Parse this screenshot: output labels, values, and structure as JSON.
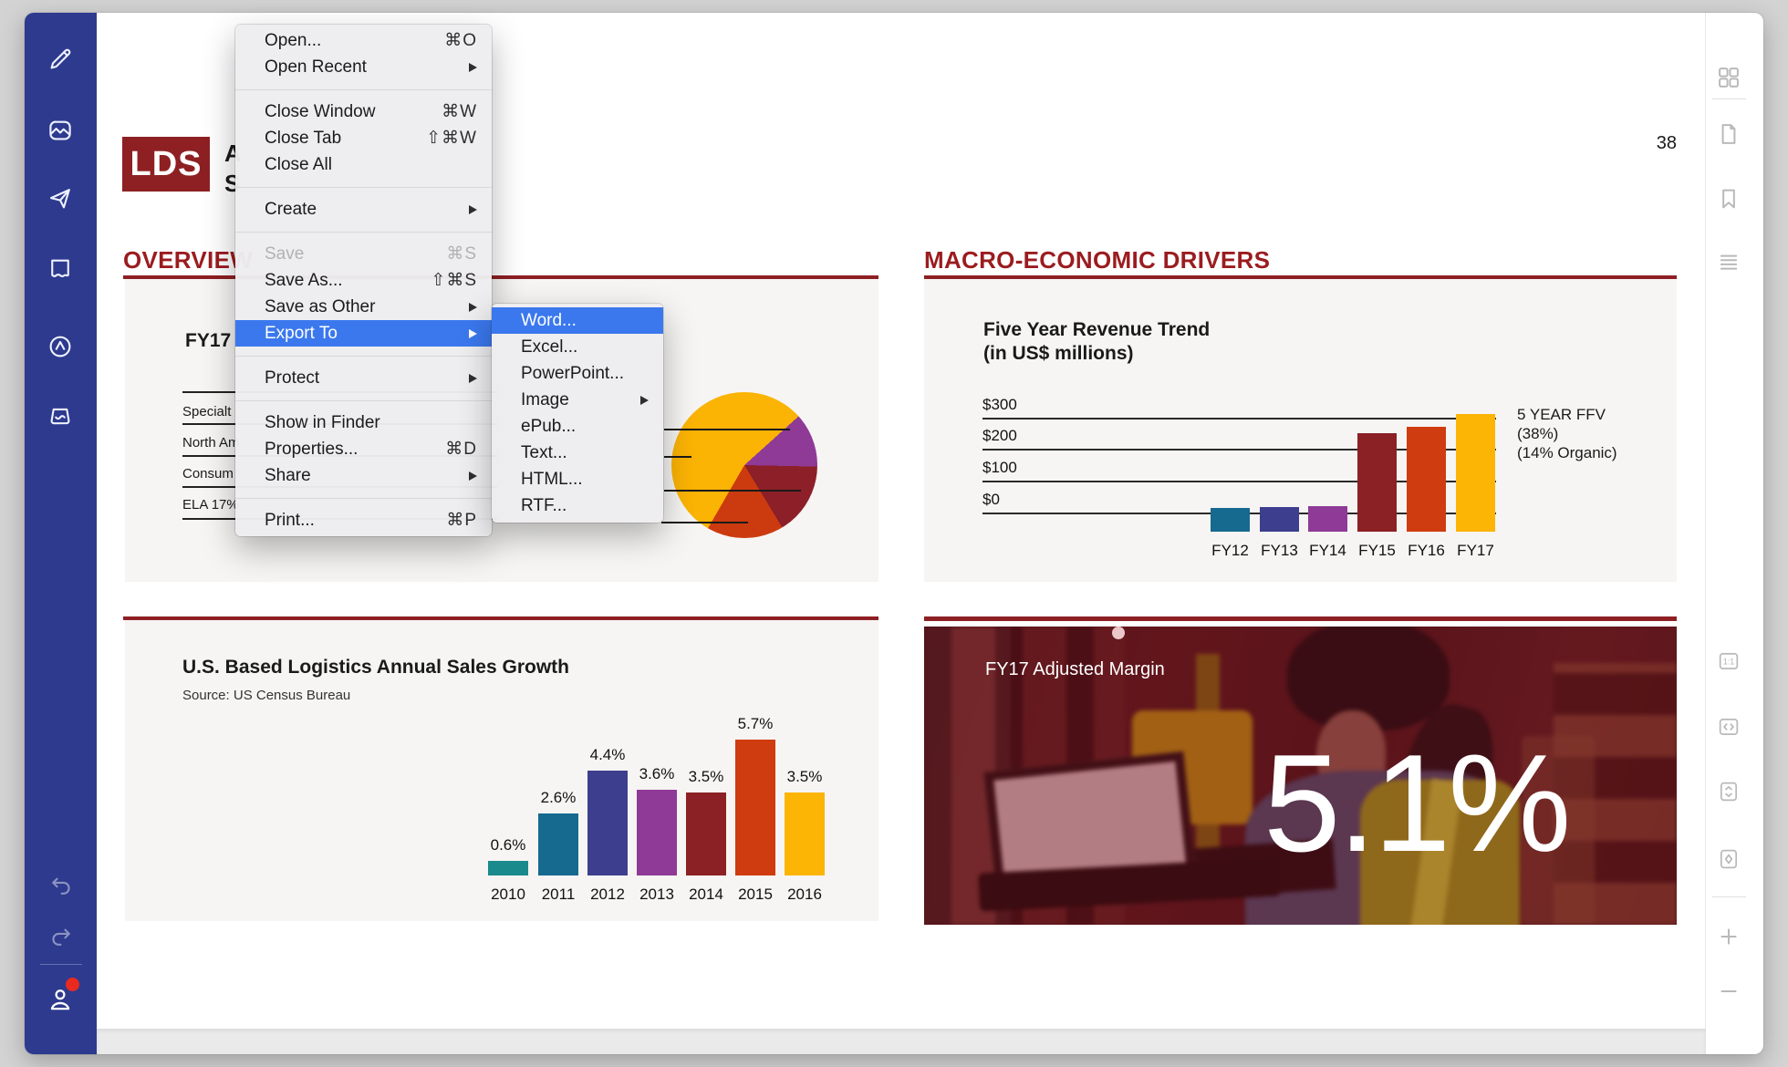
{
  "document": {
    "logo": "LDS",
    "page_number": "38",
    "masthead_fragments": [
      "A",
      "S"
    ],
    "overview": {
      "heading": "OVERVIEW",
      "fy17_label": "FY17",
      "row_fragments": [
        "Specialt",
        "North Am",
        "Consum",
        "ELA 17%"
      ]
    },
    "macro": {
      "heading": "MACRO-ECONOMIC DRIVERS"
    },
    "us_section": {
      "title": "U.S. Based Logistics Annual Sales Growth",
      "source": "Source: US Census Bureau"
    },
    "margin_panel": {
      "label": "FY17 Adjusted Margin",
      "value": "5.1%"
    }
  },
  "chart_data": [
    {
      "type": "bar",
      "title": "Five Year Revenue Trend",
      "subtitle": "(in US$ millions)",
      "categories": [
        "FY12",
        "FY13",
        "FY14",
        "FY15",
        "FY16",
        "FY17"
      ],
      "values": [
        18,
        20,
        23,
        255,
        275,
        315
      ],
      "ylabel": "US$ millions",
      "ylim": [
        0,
        300
      ],
      "ytick_labels": [
        "$300",
        "$200",
        "$100",
        "$0"
      ],
      "grid": "horizontal",
      "legend": "none",
      "annotation": [
        "5 YEAR FFV",
        "(38%)",
        "(14% Organic)"
      ],
      "colors": [
        "#16698f",
        "#3e3e8e",
        "#8f3a97",
        "#8b2125",
        "#cf3c0f",
        "#fcb405"
      ]
    },
    {
      "type": "bar",
      "title": "U.S. Based Logistics Annual Sales Growth",
      "source": "Source: US Census Bureau",
      "categories": [
        "2010",
        "2011",
        "2012",
        "2013",
        "2014",
        "2015",
        "2016"
      ],
      "values": [
        0.6,
        2.6,
        4.4,
        3.6,
        3.5,
        5.7,
        3.5
      ],
      "value_labels": [
        "0.6%",
        "2.6%",
        "4.4%",
        "3.6%",
        "3.5%",
        "5.7%",
        "3.5%"
      ],
      "grid": "off",
      "legend": "none",
      "colors": [
        "#1a8a8c",
        "#16698f",
        "#3e3e8e",
        "#8f3a97",
        "#8b2125",
        "#cf3c0f",
        "#fcb405"
      ]
    },
    {
      "type": "pie",
      "slices": [
        {
          "color": "#fbb304",
          "pct": 55
        },
        {
          "color": "#8f3a97",
          "pct": 12
        },
        {
          "color": "#8c1f28",
          "pct": 16
        },
        {
          "color": "#cc3b10",
          "pct": 17
        }
      ]
    }
  ],
  "menu": {
    "items": [
      {
        "label": "Open...",
        "shortcut": "⌘O"
      },
      {
        "label": "Open Recent"
      },
      {
        "label": "Close Window",
        "shortcut": "⌘W"
      },
      {
        "label": "Close Tab",
        "shortcut": "⇧⌘W"
      },
      {
        "label": "Close All"
      },
      {
        "label": "Create"
      },
      {
        "label": "Save",
        "shortcut": "⌘S",
        "disabled": true
      },
      {
        "label": "Save As...",
        "shortcut": "⇧⌘S"
      },
      {
        "label": "Save as Other"
      },
      {
        "label": "Export To",
        "highlighted": true
      },
      {
        "label": "Protect"
      },
      {
        "label": "Show in Finder"
      },
      {
        "label": "Properties...",
        "shortcut": "⌘D"
      },
      {
        "label": "Share"
      },
      {
        "label": "Print...",
        "shortcut": "⌘P"
      }
    ],
    "export_submenu": [
      {
        "label": "Word...",
        "highlighted": true
      },
      {
        "label": "Excel..."
      },
      {
        "label": "PowerPoint..."
      },
      {
        "label": "Image"
      },
      {
        "label": "ePub..."
      },
      {
        "label": "Text..."
      },
      {
        "label": "HTML..."
      },
      {
        "label": "RTF..."
      }
    ]
  },
  "left_sidebar": {
    "icons": [
      "pencil",
      "image",
      "send",
      "note",
      "compass",
      "inbox",
      "undo",
      "redo",
      "account"
    ],
    "account_has_notification": true
  },
  "right_sidebar": {
    "icons": [
      "thumbnails-grid",
      "page",
      "bookmark",
      "outline",
      "actual-size",
      "fit-width",
      "fit-height",
      "fit-page",
      "zoom-in",
      "zoom-out"
    ]
  },
  "colors": {
    "accent_highlight": "#3b78ee",
    "brand_red": "#8e2023",
    "heading_red": "#9b1c1f",
    "sidebar_indigo": "#2d3a8e",
    "notification_red": "#ea2a1f"
  }
}
